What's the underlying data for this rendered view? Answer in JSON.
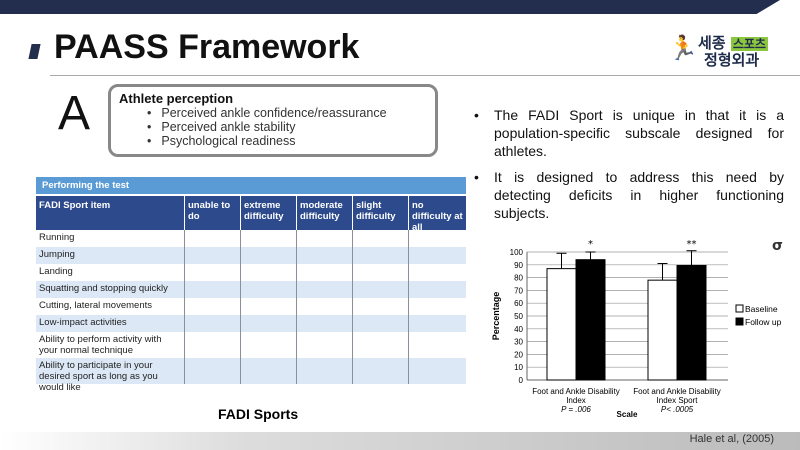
{
  "title": "PAASS Framework",
  "logo": {
    "line1": "세종",
    "tag": "스포츠",
    "line2": "정형외과"
  },
  "athlete_box": {
    "letter": "A",
    "heading": "Athlete perception",
    "items": [
      "Perceived ankle confidence/reassurance",
      "Perceived ankle stability",
      "Psychological readiness"
    ]
  },
  "table": {
    "title": "Performing the test",
    "columns": [
      "FADI Sport item",
      "unable to do",
      "extreme difficulty",
      "moderate difficulty",
      "slight difficulty",
      "no difficulty at all"
    ],
    "rows": [
      "Running",
      "Jumping",
      "Landing",
      "Squatting and stopping quickly",
      "Cutting, lateral movements",
      "Low-impact activities",
      "Ability to perform activity with your normal technique",
      "Ability to participate in your desired sport as long as you would like"
    ]
  },
  "table_caption": "FADI Sports",
  "points": [
    "The FADI Sport is unique in that it is a population-specific subscale designed for athletes.",
    "It is designed to address this need by detecting deficits in higher functioning subjects."
  ],
  "citation": "Hale et al, (2005)",
  "chart_data": {
    "type": "bar",
    "xlabel": "Scale",
    "ylabel": "Percentage",
    "ylim": [
      0,
      100
    ],
    "yticks": [
      0,
      10,
      20,
      30,
      40,
      50,
      60,
      70,
      80,
      90,
      100
    ],
    "grid": true,
    "legend": "right",
    "categories": [
      "Foot and Ankle Disability Index",
      "Foot and Ankle Disability Index Sport"
    ],
    "p_values": [
      "P = .006",
      "P< .0005"
    ],
    "significance": [
      "*",
      "**"
    ],
    "series": [
      {
        "name": "Baseline",
        "values": [
          87,
          78
        ],
        "error": [
          12,
          13
        ],
        "color": "#ffffff"
      },
      {
        "name": "Follow up",
        "values": [
          94,
          89.5
        ],
        "error": [
          6,
          11.5
        ],
        "color": "#000000"
      }
    ]
  }
}
